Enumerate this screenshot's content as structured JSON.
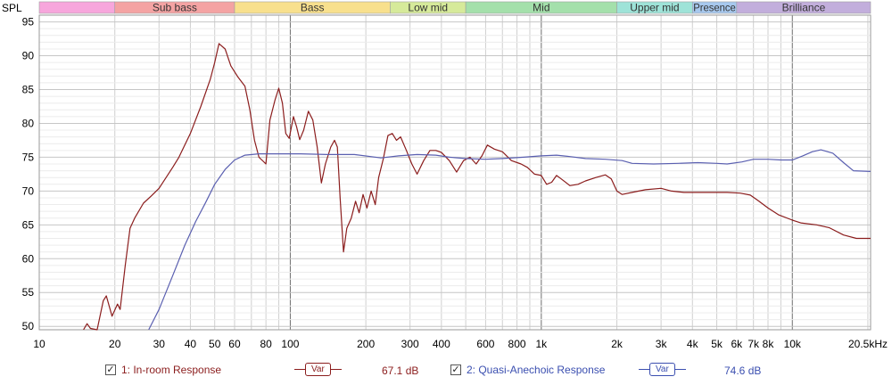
{
  "chart_data": {
    "type": "line",
    "ylabel": "SPL",
    "x_scale": "log",
    "xlim": [
      10,
      20500
    ],
    "ylim": [
      49.5,
      96
    ],
    "x_ticks": [
      {
        "v": 10,
        "label": "10"
      },
      {
        "v": 20,
        "label": "20"
      },
      {
        "v": 30,
        "label": "30"
      },
      {
        "v": 40,
        "label": "40"
      },
      {
        "v": 50,
        "label": "50"
      },
      {
        "v": 60,
        "label": "60"
      },
      {
        "v": 80,
        "label": "80"
      },
      {
        "v": 100,
        "label": "100"
      },
      {
        "v": 200,
        "label": "200"
      },
      {
        "v": 300,
        "label": "300"
      },
      {
        "v": 400,
        "label": "400"
      },
      {
        "v": 600,
        "label": "600"
      },
      {
        "v": 800,
        "label": "800"
      },
      {
        "v": 1000,
        "label": "1k"
      },
      {
        "v": 2000,
        "label": "2k"
      },
      {
        "v": 3000,
        "label": "3k"
      },
      {
        "v": 4000,
        "label": "4k"
      },
      {
        "v": 5000,
        "label": "5k"
      },
      {
        "v": 6000,
        "label": "6k"
      },
      {
        "v": 7000,
        "label": "7k"
      },
      {
        "v": 8000,
        "label": "8k"
      },
      {
        "v": 10000,
        "label": "10k"
      },
      {
        "v": 20500,
        "label": "20.5kHz"
      }
    ],
    "y_ticks": [
      50,
      55,
      60,
      65,
      70,
      75,
      80,
      85,
      90,
      95
    ],
    "bands": [
      {
        "label": "",
        "from": 10,
        "to": 20,
        "color": "#f7a6dc"
      },
      {
        "label": "Sub bass",
        "from": 20,
        "to": 60,
        "color": "#f4a3a3"
      },
      {
        "label": "Bass",
        "from": 60,
        "to": 250,
        "color": "#f8e08d"
      },
      {
        "label": "Low mid",
        "from": 250,
        "to": 500,
        "color": "#d6ea9a"
      },
      {
        "label": "Mid",
        "from": 500,
        "to": 2000,
        "color": "#a4e0ab"
      },
      {
        "label": "Upper mid",
        "from": 2000,
        "to": 4000,
        "color": "#9ee3d8"
      },
      {
        "label": "Presence",
        "from": 4000,
        "to": 6000,
        "color": "#a7c8ee"
      },
      {
        "label": "Brilliance",
        "from": 6000,
        "to": 20500,
        "color": "#c2aedc"
      }
    ],
    "series": [
      {
        "name": "1: In-room Response",
        "color": "#8b1d1d",
        "points": [
          [
            15,
            49.5
          ],
          [
            15.5,
            50.4
          ],
          [
            16,
            49.7
          ],
          [
            17,
            49.5
          ],
          [
            18,
            53.8
          ],
          [
            18.5,
            54.5
          ],
          [
            19.5,
            51.5
          ],
          [
            20.5,
            53.3
          ],
          [
            21,
            52.5
          ],
          [
            22,
            59
          ],
          [
            23,
            64.5
          ],
          [
            24,
            66
          ],
          [
            26,
            68.2
          ],
          [
            28,
            69.3
          ],
          [
            30,
            70.4
          ],
          [
            32,
            72
          ],
          [
            34,
            73.5
          ],
          [
            36,
            75
          ],
          [
            40,
            78.5
          ],
          [
            44,
            82.5
          ],
          [
            48,
            86.5
          ],
          [
            50,
            89
          ],
          [
            52,
            91.8
          ],
          [
            55,
            91
          ],
          [
            58,
            88.5
          ],
          [
            62,
            86.8
          ],
          [
            66,
            85.5
          ],
          [
            69,
            82
          ],
          [
            72,
            77.5
          ],
          [
            75,
            75
          ],
          [
            78,
            74.4
          ],
          [
            80,
            74
          ],
          [
            83,
            80.5
          ],
          [
            87,
            83.5
          ],
          [
            90,
            85.2
          ],
          [
            93,
            83
          ],
          [
            96,
            78.5
          ],
          [
            99,
            77.8
          ],
          [
            103,
            81
          ],
          [
            106,
            79.5
          ],
          [
            109,
            77.6
          ],
          [
            113,
            79
          ],
          [
            118,
            81.8
          ],
          [
            123,
            80.5
          ],
          [
            128,
            76.5
          ],
          [
            133,
            71.2
          ],
          [
            138,
            74
          ],
          [
            145,
            76.5
          ],
          [
            150,
            77.5
          ],
          [
            154,
            76.5
          ],
          [
            158,
            69
          ],
          [
            163,
            61
          ],
          [
            168,
            64.5
          ],
          [
            175,
            66
          ],
          [
            182,
            68.5
          ],
          [
            188,
            66.8
          ],
          [
            195,
            69.5
          ],
          [
            202,
            67.5
          ],
          [
            210,
            70
          ],
          [
            218,
            68
          ],
          [
            225,
            72
          ],
          [
            235,
            74.8
          ],
          [
            245,
            78.2
          ],
          [
            255,
            78.5
          ],
          [
            265,
            77.5
          ],
          [
            275,
            78
          ],
          [
            290,
            76
          ],
          [
            305,
            74
          ],
          [
            320,
            72.5
          ],
          [
            340,
            74.5
          ],
          [
            360,
            76
          ],
          [
            380,
            76
          ],
          [
            400,
            75.7
          ],
          [
            430,
            74.5
          ],
          [
            460,
            72.8
          ],
          [
            490,
            74.5
          ],
          [
            520,
            75
          ],
          [
            550,
            74
          ],
          [
            580,
            75.2
          ],
          [
            610,
            76.8
          ],
          [
            650,
            76.2
          ],
          [
            700,
            75.8
          ],
          [
            760,
            74.5
          ],
          [
            830,
            74
          ],
          [
            880,
            73.5
          ],
          [
            940,
            72.5
          ],
          [
            1000,
            72.3
          ],
          [
            1050,
            71
          ],
          [
            1100,
            71.3
          ],
          [
            1150,
            72.3
          ],
          [
            1200,
            71.8
          ],
          [
            1300,
            70.8
          ],
          [
            1400,
            71
          ],
          [
            1500,
            71.5
          ],
          [
            1650,
            72
          ],
          [
            1800,
            72.4
          ],
          [
            1900,
            71.8
          ],
          [
            2000,
            70
          ],
          [
            2100,
            69.5
          ],
          [
            2300,
            69.8
          ],
          [
            2600,
            70.2
          ],
          [
            3000,
            70.4
          ],
          [
            3300,
            70
          ],
          [
            3700,
            69.8
          ],
          [
            4500,
            69.8
          ],
          [
            5500,
            69.8
          ],
          [
            6200,
            69.7
          ],
          [
            6800,
            69.4
          ],
          [
            7300,
            68.6
          ],
          [
            8000,
            67.5
          ],
          [
            8800,
            66.5
          ],
          [
            10000,
            65.7
          ],
          [
            10800,
            65.3
          ],
          [
            12500,
            65
          ],
          [
            14000,
            64.6
          ],
          [
            16000,
            63.5
          ],
          [
            18000,
            63
          ],
          [
            20500,
            63
          ]
        ]
      },
      {
        "name": "2: Quasi-Anechoic Response",
        "color": "#5a5fb0",
        "points": [
          [
            27.3,
            49.5
          ],
          [
            30,
            52.5
          ],
          [
            34,
            57.5
          ],
          [
            38,
            62
          ],
          [
            42,
            65.5
          ],
          [
            46,
            68.3
          ],
          [
            50,
            71
          ],
          [
            55,
            73.2
          ],
          [
            60,
            74.6
          ],
          [
            66,
            75.3
          ],
          [
            75,
            75.5
          ],
          [
            90,
            75.5
          ],
          [
            110,
            75.5
          ],
          [
            140,
            75.4
          ],
          [
            180,
            75.4
          ],
          [
            230,
            74.9
          ],
          [
            270,
            75.2
          ],
          [
            320,
            75.4
          ],
          [
            380,
            75.3
          ],
          [
            430,
            75
          ],
          [
            500,
            74.8
          ],
          [
            600,
            74.7
          ],
          [
            700,
            74.8
          ],
          [
            850,
            75
          ],
          [
            1000,
            75.2
          ],
          [
            1150,
            75.3
          ],
          [
            1300,
            75.1
          ],
          [
            1500,
            74.8
          ],
          [
            1800,
            74.7
          ],
          [
            2100,
            74.5
          ],
          [
            2300,
            74.1
          ],
          [
            2800,
            74
          ],
          [
            3500,
            74.1
          ],
          [
            4200,
            74.2
          ],
          [
            5000,
            74.1
          ],
          [
            5500,
            74
          ],
          [
            6300,
            74.3
          ],
          [
            7000,
            74.7
          ],
          [
            8000,
            74.7
          ],
          [
            9000,
            74.6
          ],
          [
            10000,
            74.6
          ],
          [
            11000,
            75.2
          ],
          [
            12000,
            75.8
          ],
          [
            13000,
            76.1
          ],
          [
            14500,
            75.6
          ],
          [
            16000,
            74.2
          ],
          [
            17500,
            73
          ],
          [
            20500,
            72.9
          ]
        ]
      }
    ]
  },
  "legend": [
    {
      "label": "1: In-room Response",
      "checked": "✓",
      "var_label": "Var",
      "value": "67.1 dB",
      "color": "#8b1d1d"
    },
    {
      "label": "2: Quasi-Anechoic Response",
      "checked": "✓",
      "var_label": "Var",
      "value": "74.6 dB",
      "color": "#3b4fb0"
    }
  ]
}
